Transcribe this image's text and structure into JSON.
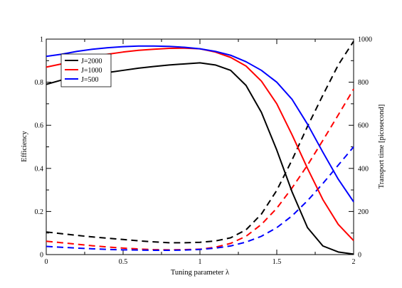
{
  "chart_data": {
    "type": "line",
    "xlabel": "Tuning parameter λ",
    "ylabel_left": "Efficiency",
    "ylabel_right": "Transport time [picosecond]",
    "xlim": [
      0,
      2
    ],
    "ylim_left": [
      0,
      1
    ],
    "ylim_right": [
      0,
      1000
    ],
    "x_ticks": [
      "0",
      "0.5",
      "1",
      "1.5",
      "2"
    ],
    "y_left_ticks": [
      "0",
      "0.2",
      "0.4",
      "0.6",
      "0.8",
      "1"
    ],
    "y_right_ticks": [
      "0",
      "200",
      "400",
      "600",
      "800",
      "1000"
    ],
    "grid": false,
    "legend_position": "top-left",
    "legend": [
      "J=2000",
      "J=1000",
      "J=500"
    ],
    "colors": {
      "J2000": "#000000",
      "J1000": "#ff0000",
      "J500": "#0000ff"
    },
    "x": [
      0,
      0.1,
      0.2,
      0.3,
      0.4,
      0.5,
      0.6,
      0.7,
      0.8,
      0.9,
      1.0,
      1.1,
      1.2,
      1.3,
      1.4,
      1.5,
      1.6,
      1.7,
      1.8,
      1.9,
      2.0
    ],
    "series": [
      {
        "name": "J=2000",
        "axis": "left",
        "style": "solid",
        "color": "#000000",
        "values": [
          0.79,
          0.81,
          0.825,
          0.835,
          0.845,
          0.855,
          0.865,
          0.873,
          0.88,
          0.885,
          0.89,
          0.88,
          0.855,
          0.785,
          0.66,
          0.485,
          0.29,
          0.125,
          0.04,
          0.012,
          0.002
        ]
      },
      {
        "name": "J=1000",
        "axis": "left",
        "style": "solid",
        "color": "#ff0000",
        "values": [
          0.87,
          0.885,
          0.9,
          0.915,
          0.93,
          0.94,
          0.948,
          0.953,
          0.957,
          0.958,
          0.955,
          0.94,
          0.915,
          0.875,
          0.805,
          0.7,
          0.555,
          0.4,
          0.255,
          0.14,
          0.065
        ]
      },
      {
        "name": "J=500",
        "axis": "left",
        "style": "solid",
        "color": "#0000ff",
        "values": [
          0.92,
          0.93,
          0.943,
          0.953,
          0.96,
          0.965,
          0.968,
          0.968,
          0.966,
          0.962,
          0.955,
          0.943,
          0.925,
          0.895,
          0.855,
          0.8,
          0.72,
          0.605,
          0.475,
          0.35,
          0.245
        ]
      },
      {
        "name": "",
        "axis": "right",
        "style": "dashed",
        "color": "#000000",
        "values": [
          105,
          97,
          89,
          82,
          76,
          70,
          64,
          59,
          55,
          55,
          57,
          63,
          78,
          115,
          188,
          298,
          440,
          595,
          740,
          880,
          990
        ]
      },
      {
        "name": "",
        "axis": "right",
        "style": "dashed",
        "color": "#ff0000",
        "values": [
          62,
          55,
          48,
          41,
          35,
          30,
          26,
          23,
          22,
          23,
          25,
          34,
          52,
          85,
          140,
          215,
          310,
          415,
          530,
          648,
          768
        ]
      },
      {
        "name": "",
        "axis": "right",
        "style": "dashed",
        "color": "#0000ff",
        "values": [
          38,
          34,
          30,
          27,
          24,
          22,
          21,
          20,
          20,
          21,
          24,
          30,
          40,
          58,
          85,
          125,
          180,
          250,
          330,
          415,
          500
        ]
      }
    ]
  }
}
